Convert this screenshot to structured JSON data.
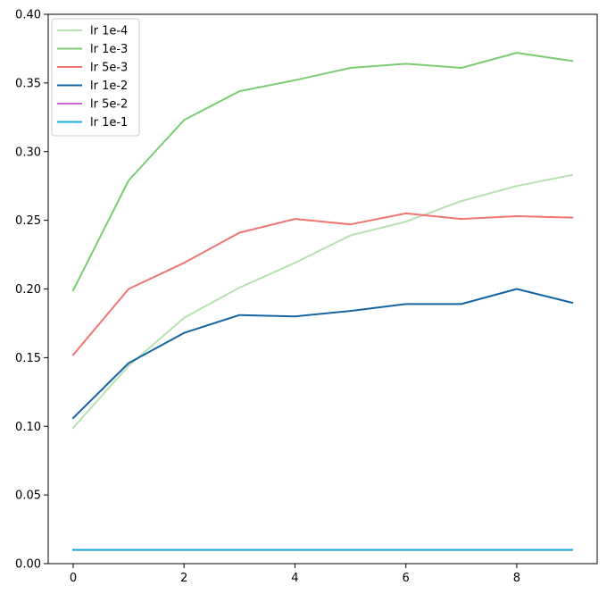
{
  "chart_data": {
    "type": "line",
    "title": "",
    "xlabel": "",
    "ylabel": "",
    "xlim": [
      -0.45,
      9.45
    ],
    "ylim": [
      0,
      0.4
    ],
    "xticks": [
      0,
      2,
      4,
      6,
      8
    ],
    "xtick_labels": [
      "0",
      "2",
      "4",
      "6",
      "8"
    ],
    "yticks": [
      0.0,
      0.05,
      0.1,
      0.15,
      0.2,
      0.25,
      0.3,
      0.35,
      0.4
    ],
    "ytick_labels": [
      "0.00",
      "0.05",
      "0.10",
      "0.15",
      "0.20",
      "0.25",
      "0.30",
      "0.35",
      "0.40"
    ],
    "grid": false,
    "legend_position": "top-left",
    "x": [
      0,
      1,
      2,
      3,
      4,
      5,
      6,
      7,
      8,
      9
    ],
    "series": [
      {
        "name": "lr 1e-4",
        "color": "#b7e1b1",
        "values": [
          0.099,
          0.144,
          0.179,
          0.201,
          0.219,
          0.239,
          0.249,
          0.264,
          0.275,
          0.283
        ]
      },
      {
        "name": "lr 1e-3",
        "color": "#7acc72",
        "values": [
          0.199,
          0.279,
          0.323,
          0.344,
          0.352,
          0.361,
          0.364,
          0.361,
          0.372,
          0.366
        ]
      },
      {
        "name": "lr 5e-3",
        "color": "#f07470",
        "values": [
          0.152,
          0.2,
          0.219,
          0.241,
          0.251,
          0.247,
          0.255,
          0.251,
          0.253,
          0.252
        ]
      },
      {
        "name": "lr 1e-2",
        "color": "#1464a2",
        "values": [
          0.106,
          0.146,
          0.168,
          0.181,
          0.18,
          0.184,
          0.189,
          0.189,
          0.2,
          0.19
        ]
      },
      {
        "name": "lr 5e-2",
        "color": "#d262d8",
        "values": [
          0.01,
          0.01,
          0.01,
          0.01,
          0.01,
          0.01,
          0.01,
          0.01,
          0.01,
          0.01
        ]
      },
      {
        "name": "lr 1e-1",
        "color": "#1ab2d6",
        "values": [
          0.01,
          0.01,
          0.01,
          0.01,
          0.01,
          0.01,
          0.01,
          0.01,
          0.01,
          0.01
        ]
      }
    ]
  }
}
